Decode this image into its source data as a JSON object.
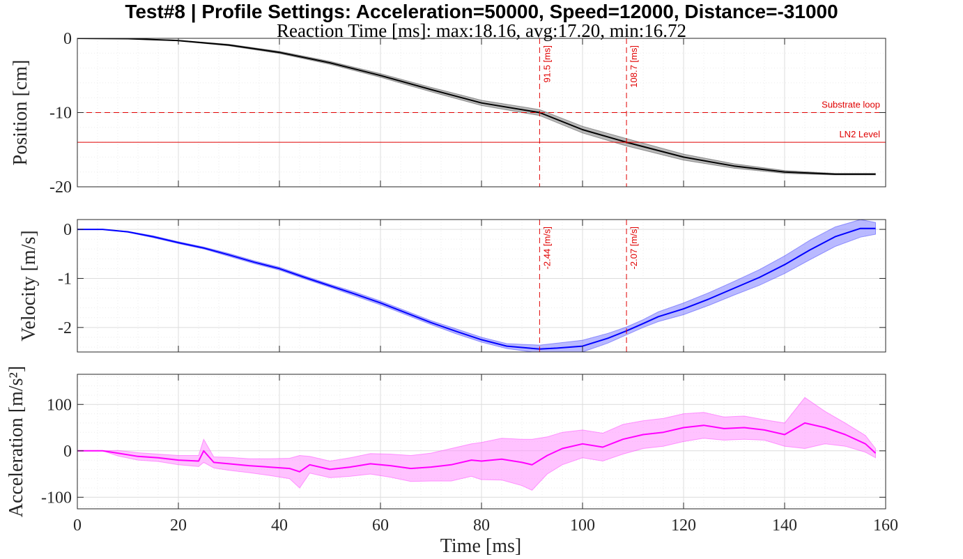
{
  "title": "Test#8 | Profile Settings: Acceleration=50000, Speed=12000, Distance=-31000",
  "subtitle": "Reaction Time [ms]: max:18.16, avg:17.20, min:16.72",
  "colors": {
    "position": "#000000",
    "position_band": "#808080",
    "velocity": "#0000ff",
    "velocity_band": "#8080ff",
    "acceleration": "#ff00ff",
    "acceleration_band": "#ff90ff",
    "annotation": "#e00000",
    "axis": "#262626",
    "grid_major": "#dcdcdc",
    "grid_minor": "#ebebeb"
  },
  "chart_data": [
    {
      "type": "line",
      "name": "position-panel",
      "ylabel": "Position [cm]",
      "xlim": [
        0,
        160
      ],
      "ylim": [
        -20,
        0
      ],
      "x_ticks": [
        0,
        20,
        40,
        60,
        80,
        100,
        120,
        140,
        160
      ],
      "y_ticks": [
        -20,
        -10,
        0
      ],
      "y_tick_labels": [
        "-20",
        "-10",
        "0"
      ],
      "grid": true,
      "series": [
        {
          "x": [
            0,
            10,
            20,
            30,
            40,
            50,
            60,
            70,
            80,
            91.5,
            100,
            108.7,
            120,
            130,
            140,
            150,
            158
          ],
          "y": [
            0,
            -0.05,
            -0.3,
            -0.9,
            -1.9,
            -3.3,
            -5.0,
            -6.9,
            -8.7,
            -10.0,
            -12.3,
            -14.0,
            -16.0,
            -17.2,
            -18.0,
            -18.3,
            -18.3
          ],
          "band": [
            0,
            0,
            0.05,
            0.1,
            0.15,
            0.2,
            0.25,
            0.3,
            0.35,
            0.4,
            0.45,
            0.5,
            0.4,
            0.3,
            0.2,
            0.1,
            0.1
          ]
        }
      ],
      "hlines": [
        {
          "y": -10,
          "style": "dashed",
          "label": "Substrate loop"
        },
        {
          "y": -14,
          "style": "solid",
          "label": "LN2 Level"
        }
      ],
      "vlines": [
        {
          "x": 91.5,
          "label": "91.5 [ms]"
        },
        {
          "x": 108.7,
          "label": "108.7 [ms]"
        }
      ]
    },
    {
      "type": "line",
      "name": "velocity-panel",
      "ylabel": "Velocity [m/s]",
      "xlim": [
        0,
        160
      ],
      "ylim": [
        -2.5,
        0.2
      ],
      "x_ticks": [
        0,
        20,
        40,
        60,
        80,
        100,
        120,
        140,
        160
      ],
      "y_ticks": [
        -2,
        -1,
        0
      ],
      "y_tick_labels": [
        "-2",
        "-1",
        "0"
      ],
      "grid": true,
      "series": [
        {
          "x": [
            0,
            5,
            10,
            15,
            20,
            25,
            30,
            35,
            40,
            45,
            50,
            55,
            60,
            65,
            70,
            75,
            80,
            85,
            91.5,
            95,
            100,
            105,
            108.7,
            112,
            115,
            120,
            125,
            130,
            135,
            140,
            145,
            150,
            155,
            158
          ],
          "y": [
            0,
            0,
            -0.05,
            -0.15,
            -0.27,
            -0.38,
            -0.52,
            -0.67,
            -0.8,
            -0.98,
            -1.15,
            -1.32,
            -1.5,
            -1.7,
            -1.9,
            -2.08,
            -2.25,
            -2.38,
            -2.44,
            -2.42,
            -2.38,
            -2.22,
            -2.07,
            -1.92,
            -1.78,
            -1.62,
            -1.42,
            -1.2,
            -0.98,
            -0.72,
            -0.42,
            -0.15,
            0.02,
            0.02
          ],
          "band": [
            0,
            0,
            0.01,
            0.02,
            0.02,
            0.02,
            0.03,
            0.03,
            0.03,
            0.03,
            0.03,
            0.04,
            0.04,
            0.04,
            0.04,
            0.05,
            0.05,
            0.05,
            0.08,
            0.1,
            0.12,
            0.1,
            0.08,
            0.08,
            0.1,
            0.12,
            0.13,
            0.14,
            0.16,
            0.18,
            0.2,
            0.2,
            0.18,
            0.12
          ]
        }
      ],
      "vlines": [
        {
          "x": 91.5,
          "label": "-2.44 [m/s]"
        },
        {
          "x": 108.7,
          "label": "-2.07 [m/s]"
        }
      ]
    },
    {
      "type": "line",
      "name": "acceleration-panel",
      "ylabel": "Acceleration [m/s²]",
      "xlabel": "Time [ms]",
      "xlim": [
        0,
        160
      ],
      "ylim": [
        -125,
        165
      ],
      "x_ticks": [
        0,
        20,
        40,
        60,
        80,
        100,
        120,
        140,
        160
      ],
      "x_tick_labels": [
        "0",
        "20",
        "40",
        "60",
        "80",
        "100",
        "120",
        "140",
        "160"
      ],
      "y_ticks": [
        -100,
        0,
        100
      ],
      "y_tick_labels": [
        "-100",
        "0",
        "100"
      ],
      "grid": true,
      "series": [
        {
          "x": [
            0,
            5,
            8,
            12,
            16,
            20,
            24,
            25,
            27,
            30,
            34,
            38,
            42,
            44,
            46,
            50,
            54,
            58,
            62,
            66,
            70,
            74,
            78,
            80,
            84,
            88,
            90,
            93,
            96,
            100,
            104,
            108,
            112,
            116,
            120,
            124,
            128,
            132,
            136,
            140,
            144,
            148,
            152,
            156,
            158
          ],
          "y": [
            0,
            0,
            -5,
            -12,
            -15,
            -20,
            -22,
            0,
            -25,
            -28,
            -32,
            -35,
            -38,
            -45,
            -30,
            -40,
            -35,
            -28,
            -32,
            -38,
            -35,
            -30,
            -20,
            -22,
            -18,
            -25,
            -30,
            -10,
            5,
            15,
            8,
            25,
            35,
            40,
            50,
            55,
            48,
            50,
            45,
            35,
            60,
            50,
            35,
            15,
            -5
          ],
          "band": [
            0,
            0,
            6,
            8,
            8,
            10,
            12,
            25,
            12,
            14,
            15,
            18,
            22,
            35,
            18,
            18,
            20,
            22,
            25,
            28,
            30,
            35,
            35,
            40,
            45,
            50,
            55,
            40,
            35,
            30,
            30,
            32,
            30,
            30,
            30,
            28,
            25,
            25,
            22,
            25,
            55,
            35,
            25,
            18,
            10
          ]
        }
      ]
    }
  ]
}
